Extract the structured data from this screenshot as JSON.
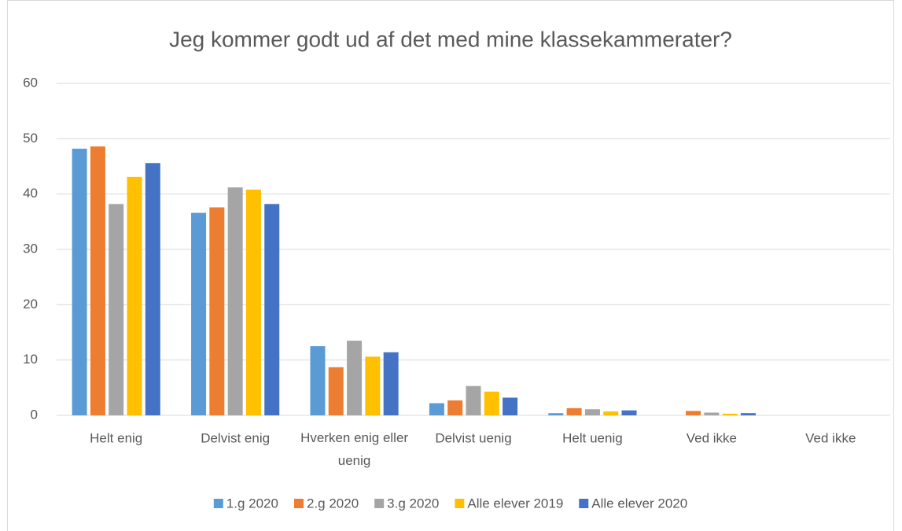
{
  "chart_data": {
    "type": "bar",
    "title": "Jeg kommer godt ud af det med mine klassekammerater?",
    "categories": [
      "Helt enig",
      "Delvist enig",
      "Hverken enig eller uenig",
      "Delvist uenig",
      "Helt uenig",
      "Ved ikke",
      "Ved ikke"
    ],
    "series": [
      {
        "name": "1.g 2020",
        "color": "#5b9bd5",
        "values": [
          48.2,
          36.6,
          12.5,
          2.2,
          0.4,
          0,
          0
        ]
      },
      {
        "name": "2.g 2020",
        "color": "#ed7d31",
        "values": [
          48.6,
          37.6,
          8.7,
          2.7,
          1.3,
          0.8,
          0
        ]
      },
      {
        "name": "3.g 2020",
        "color": "#a5a5a5",
        "values": [
          38.2,
          41.2,
          13.5,
          5.3,
          1.1,
          0.5,
          0
        ]
      },
      {
        "name": "Alle elever 2019",
        "color": "#ffc000",
        "values": [
          43.1,
          40.8,
          10.6,
          4.3,
          0.7,
          0.3,
          0
        ]
      },
      {
        "name": "Alle elever 2020",
        "color": "#4472c4",
        "values": [
          45.6,
          38.2,
          11.4,
          3.2,
          0.9,
          0.4,
          0
        ]
      }
    ],
    "ylim": [
      0,
      60
    ],
    "yticks": [
      0,
      10,
      20,
      30,
      40,
      50,
      60
    ],
    "grid": true,
    "legend": "bottom"
  }
}
